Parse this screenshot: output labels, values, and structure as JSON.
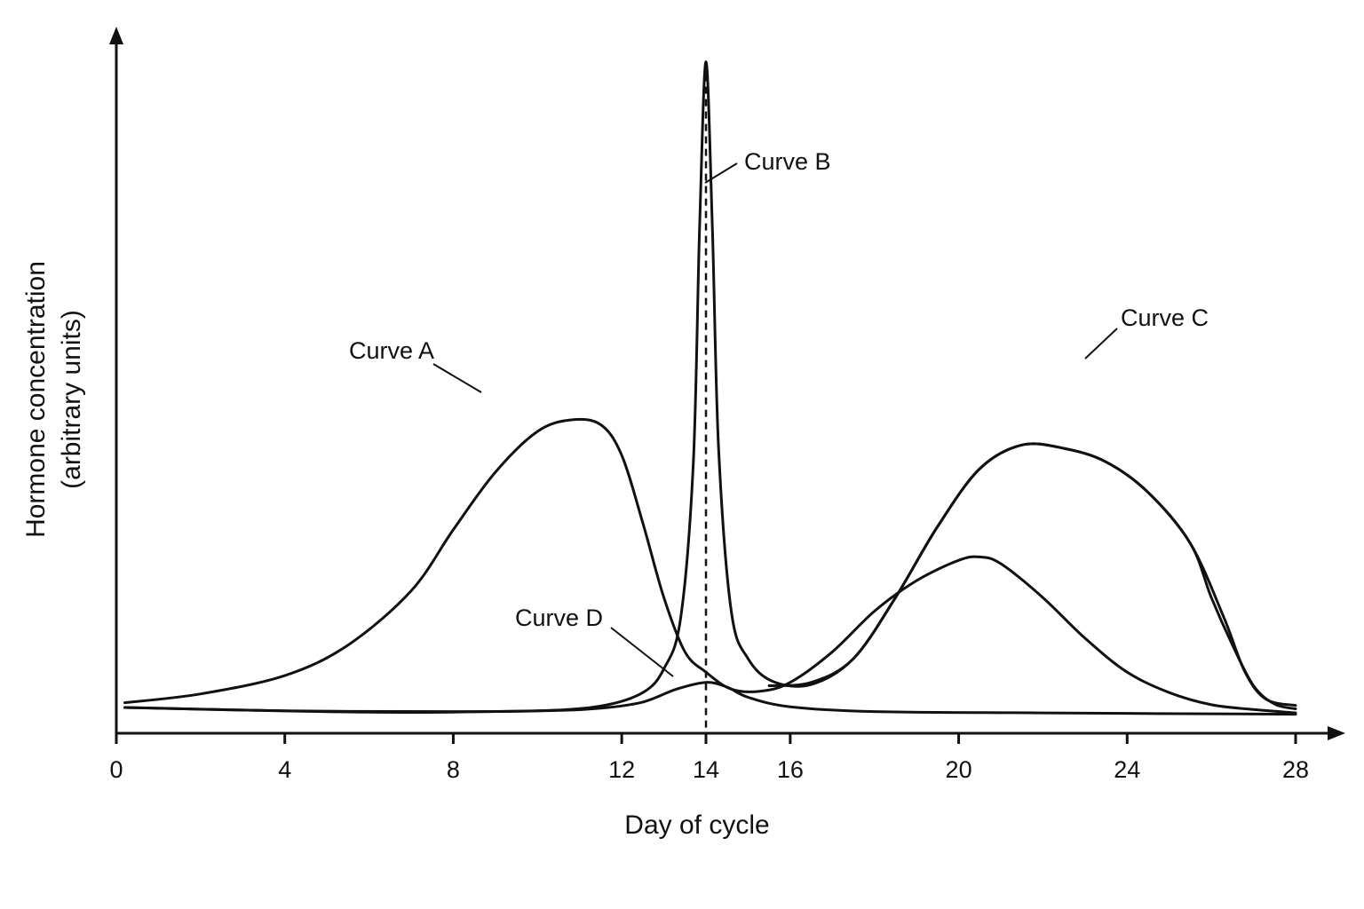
{
  "chart_data": {
    "type": "line",
    "title": "",
    "xlabel": "Day of cycle",
    "ylabel": [
      "Hormone concentration",
      "(arbitrary units)"
    ],
    "xlim": [
      0,
      28
    ],
    "ylim": [
      0,
      100
    ],
    "x_ticks": [
      0,
      4,
      8,
      12,
      14,
      16,
      20,
      24,
      28
    ],
    "grid": false,
    "legend": "none",
    "reference_line_x": 14,
    "series": [
      {
        "name": "Curve A",
        "points": [
          [
            0.2,
            4.5
          ],
          [
            2,
            5.8
          ],
          [
            4,
            8.5
          ],
          [
            5.5,
            13
          ],
          [
            7,
            21
          ],
          [
            8,
            30
          ],
          [
            9,
            38.5
          ],
          [
            10,
            44.5
          ],
          [
            10.8,
            46.2
          ],
          [
            11.5,
            45.5
          ],
          [
            12,
            41
          ],
          [
            12.5,
            31
          ],
          [
            13,
            20
          ],
          [
            13.5,
            12
          ],
          [
            14,
            9
          ],
          [
            14.6,
            6.5
          ],
          [
            15.3,
            6.2
          ],
          [
            16,
            7.5
          ],
          [
            17,
            12
          ],
          [
            18,
            18
          ],
          [
            19,
            22.5
          ],
          [
            20,
            25.5
          ],
          [
            20.5,
            26
          ],
          [
            21,
            25
          ],
          [
            22,
            20
          ],
          [
            23,
            14
          ],
          [
            24,
            9
          ],
          [
            25,
            6
          ],
          [
            26,
            4.2
          ],
          [
            27,
            3.5
          ],
          [
            28,
            3
          ]
        ]
      },
      {
        "name": "Curve B",
        "points": [
          [
            0.2,
            3.8
          ],
          [
            4,
            3.3
          ],
          [
            8,
            3.2
          ],
          [
            10,
            3.3
          ],
          [
            11.5,
            4
          ],
          [
            12.5,
            6
          ],
          [
            13,
            9.5
          ],
          [
            13.4,
            17
          ],
          [
            13.7,
            40
          ],
          [
            13.85,
            75
          ],
          [
            14,
            99
          ],
          [
            14.15,
            75
          ],
          [
            14.3,
            42
          ],
          [
            14.6,
            18
          ],
          [
            15,
            11
          ],
          [
            15.6,
            7.6
          ],
          [
            16.5,
            7.2
          ],
          [
            17.5,
            11
          ],
          [
            18.5,
            20
          ],
          [
            19.5,
            30.5
          ],
          [
            20.5,
            39
          ],
          [
            21.5,
            42.5
          ],
          [
            22.5,
            42
          ],
          [
            23.5,
            40
          ],
          [
            24.5,
            35.5
          ],
          [
            25.5,
            28
          ],
          [
            26,
            20
          ],
          [
            26.5,
            13
          ],
          [
            27,
            7
          ],
          [
            27.5,
            4.3
          ],
          [
            28,
            3.6
          ]
        ]
      },
      {
        "name": "Curve C",
        "points": [
          [
            15.5,
            7
          ],
          [
            16.5,
            7.5
          ],
          [
            17.5,
            11
          ],
          [
            18.5,
            20
          ],
          [
            19.5,
            30.5
          ],
          [
            20.5,
            39
          ],
          [
            21.5,
            42.5
          ],
          [
            22.5,
            42
          ],
          [
            23.5,
            40
          ],
          [
            24.5,
            35.5
          ],
          [
            25.5,
            28
          ],
          [
            26.3,
            17
          ],
          [
            26.8,
            9
          ],
          [
            27.3,
            5
          ],
          [
            28,
            4.1
          ]
        ]
      },
      {
        "name": "Curve D",
        "points": [
          [
            0.2,
            3.8
          ],
          [
            6,
            3.1
          ],
          [
            10,
            3.3
          ],
          [
            11.5,
            3.7
          ],
          [
            12.5,
            4.6
          ],
          [
            13.3,
            6.5
          ],
          [
            14,
            7.5
          ],
          [
            14.5,
            6.8
          ],
          [
            15,
            5.3
          ],
          [
            16,
            3.9
          ],
          [
            18,
            3.2
          ],
          [
            22,
            3.0
          ],
          [
            28,
            2.8
          ]
        ]
      }
    ],
    "annotations": {
      "curve_a": "Curve A",
      "curve_b": "Curve B",
      "curve_c": "Curve C",
      "curve_d": "Curve D"
    }
  }
}
